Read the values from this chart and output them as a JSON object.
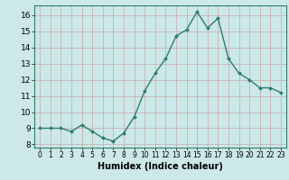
{
  "x": [
    0,
    1,
    2,
    3,
    4,
    5,
    6,
    7,
    8,
    9,
    10,
    11,
    12,
    13,
    14,
    15,
    16,
    17,
    18,
    19,
    20,
    21,
    22,
    23
  ],
  "y": [
    9.0,
    9.0,
    9.0,
    8.8,
    9.2,
    8.8,
    8.4,
    8.2,
    8.7,
    9.7,
    11.3,
    12.4,
    13.3,
    14.7,
    15.1,
    16.2,
    15.2,
    15.8,
    13.3,
    12.4,
    12.0,
    11.5,
    11.5,
    11.2
  ],
  "line_color": "#2e7d6e",
  "marker": "D",
  "marker_size": 2.0,
  "line_width": 1.0,
  "xlabel": "Humidex (Indice chaleur)",
  "xlabel_fontsize": 7,
  "xlim": [
    -0.5,
    23.5
  ],
  "ylim": [
    7.8,
    16.6
  ],
  "yticks": [
    8,
    9,
    10,
    11,
    12,
    13,
    14,
    15,
    16
  ],
  "xticks": [
    0,
    1,
    2,
    3,
    4,
    5,
    6,
    7,
    8,
    9,
    10,
    11,
    12,
    13,
    14,
    15,
    16,
    17,
    18,
    19,
    20,
    21,
    22,
    23
  ],
  "xtick_fontsize": 5.5,
  "ytick_fontsize": 6.5,
  "grid_color": "#c8a8a8",
  "bg_color": "#cce8e8",
  "fig_bg_color": "#cce8e8",
  "spine_color": "#2e7d6e"
}
